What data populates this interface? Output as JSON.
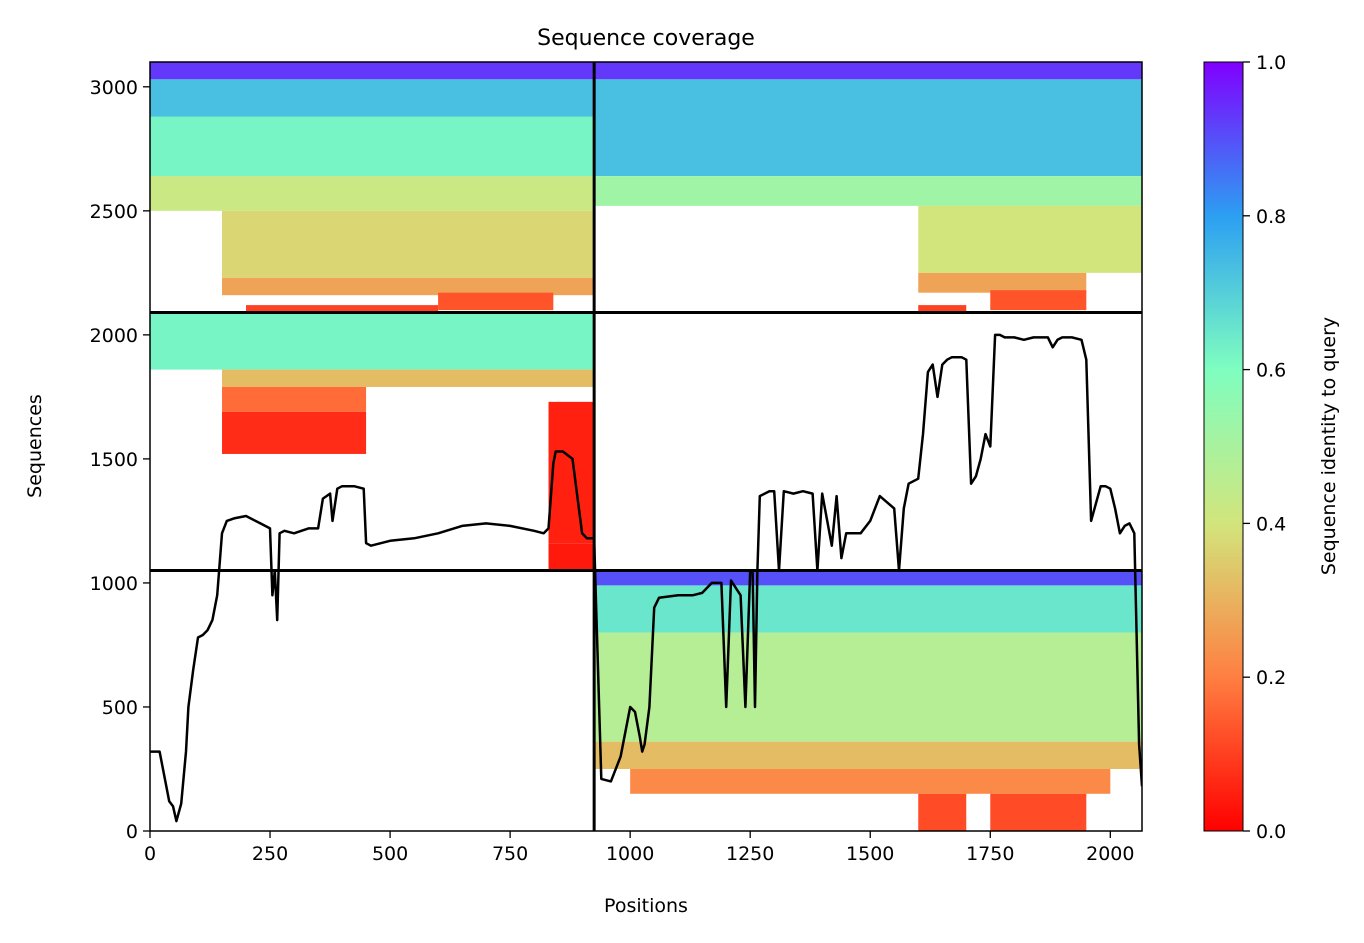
{
  "chart_data": {
    "type": "heatmap",
    "title": "Sequence coverage",
    "xlabel": "Positions",
    "ylabel": "Sequences",
    "xlim": [
      0,
      2066
    ],
    "ylim": [
      0,
      3100
    ],
    "xticks": [
      0,
      250,
      500,
      750,
      1000,
      1250,
      1500,
      1750,
      2000
    ],
    "yticks": [
      0,
      500,
      1000,
      1500,
      2000,
      2500,
      3000
    ],
    "grid": false,
    "colorbar": {
      "label": "Sequence identity to query",
      "range": [
        0,
        1
      ],
      "ticks": [
        0.0,
        0.2,
        0.4,
        0.6,
        0.8,
        1.0
      ],
      "tick_labels": [
        "0.0",
        "0.2",
        "0.4",
        "0.6",
        "0.8",
        "1.0"
      ],
      "colormap": "rainbow_r",
      "colors": [
        "#ff0000",
        "#ff7f41",
        "#d2e57c",
        "#7ffec0",
        "#2c9ff2",
        "#8000ff"
      ]
    },
    "chain_boundaries": {
      "x": [
        925
      ],
      "y": [
        1050,
        2090
      ]
    },
    "blocks": [
      {
        "x_range": [
          0,
          925
        ],
        "y_range": [
          2090,
          3100
        ],
        "bands": [
          {
            "y": [
              3030,
              3100
            ],
            "x": [
              0,
              925
            ],
            "identity": 0.93
          },
          {
            "y": [
              2640,
              3030
            ],
            "x": [
              0,
              925
            ],
            "identity": 0.73
          },
          {
            "y": [
              2640,
              2880
            ],
            "x": [
              0,
              925
            ],
            "identity": 0.62
          },
          {
            "y": [
              2500,
              2640
            ],
            "x": [
              0,
              925
            ],
            "identity": 0.42
          },
          {
            "y": [
              2230,
              2500
            ],
            "x": [
              150,
              925
            ],
            "identity": 0.37
          },
          {
            "y": [
              2160,
              2230
            ],
            "x": [
              150,
              925
            ],
            "identity": 0.27
          },
          {
            "y": [
              2100,
              2170
            ],
            "x": [
              600,
              840
            ],
            "identity": 0.13
          },
          {
            "y": [
              2090,
              2120
            ],
            "x": [
              200,
              600
            ],
            "identity": 0.1
          }
        ]
      },
      {
        "x_range": [
          925,
          2066
        ],
        "y_range": [
          2090,
          3100
        ],
        "bands": [
          {
            "y": [
              3030,
              3100
            ],
            "x": [
              925,
              2066
            ],
            "identity": 0.93
          },
          {
            "y": [
              2640,
              3030
            ],
            "x": [
              925,
              2066
            ],
            "identity": 0.73
          },
          {
            "y": [
              2520,
              2640
            ],
            "x": [
              925,
              2066
            ],
            "identity": 0.52
          },
          {
            "y": [
              2250,
              2520
            ],
            "x": [
              1600,
              2066
            ],
            "identity": 0.4
          },
          {
            "y": [
              2170,
              2250
            ],
            "x": [
              1600,
              1950
            ],
            "identity": 0.27
          },
          {
            "y": [
              2100,
              2180
            ],
            "x": [
              1750,
              1950
            ],
            "identity": 0.13
          },
          {
            "y": [
              2090,
              2120
            ],
            "x": [
              1600,
              1700
            ],
            "identity": 0.1
          }
        ]
      },
      {
        "x_range": [
          0,
          925
        ],
        "y_range": [
          1050,
          2090
        ],
        "bands": [
          {
            "y": [
              1860,
              2090
            ],
            "x": [
              0,
              925
            ],
            "identity": 0.62
          },
          {
            "y": [
              1790,
              1860
            ],
            "x": [
              150,
              925
            ],
            "identity": 0.32
          },
          {
            "y": [
              1690,
              1790
            ],
            "x": [
              150,
              450
            ],
            "identity": 0.17
          },
          {
            "y": [
              1520,
              1690
            ],
            "x": [
              150,
              450
            ],
            "identity": 0.07
          },
          {
            "y": [
              1160,
              1730
            ],
            "x": [
              830,
              925
            ],
            "identity": 0.05
          },
          {
            "y": [
              1050,
              1160
            ],
            "x": [
              830,
              925
            ],
            "identity": 0.04
          }
        ]
      },
      {
        "x_range": [
          925,
          2066
        ],
        "y_range": [
          0,
          1050
        ],
        "bands": [
          {
            "y": [
              990,
              1050
            ],
            "x": [
              925,
              2066
            ],
            "identity": 0.9
          },
          {
            "y": [
              800,
              990
            ],
            "x": [
              925,
              2066
            ],
            "identity": 0.65
          },
          {
            "y": [
              360,
              800
            ],
            "x": [
              925,
              2066
            ],
            "identity": 0.47
          },
          {
            "y": [
              250,
              360
            ],
            "x": [
              925,
              2066
            ],
            "identity": 0.32
          },
          {
            "y": [
              150,
              250
            ],
            "x": [
              1000,
              2000
            ],
            "identity": 0.22
          },
          {
            "y": [
              0,
              150
            ],
            "x": [
              1600,
              1700
            ],
            "identity": 0.12
          },
          {
            "y": [
              0,
              150
            ],
            "x": [
              1750,
              1950
            ],
            "identity": 0.12
          }
        ]
      }
    ],
    "coverage_line": {
      "x": [
        0,
        20,
        40,
        48,
        55,
        65,
        75,
        80,
        90,
        100,
        110,
        120,
        130,
        140,
        150,
        160,
        175,
        200,
        230,
        250,
        255,
        260,
        265,
        270,
        280,
        300,
        330,
        350,
        360,
        375,
        380,
        390,
        400,
        425,
        445,
        450,
        460,
        500,
        550,
        600,
        650,
        700,
        750,
        800,
        820,
        830,
        840,
        845,
        860,
        880,
        900,
        910,
        925,
        940,
        960,
        980,
        1000,
        1010,
        1020,
        1025,
        1030,
        1040,
        1050,
        1060,
        1100,
        1130,
        1150,
        1170,
        1190,
        1200,
        1210,
        1230,
        1240,
        1250,
        1255,
        1260,
        1265,
        1270,
        1290,
        1300,
        1310,
        1320,
        1340,
        1360,
        1380,
        1390,
        1400,
        1420,
        1430,
        1440,
        1450,
        1480,
        1500,
        1520,
        1550,
        1560,
        1570,
        1580,
        1600,
        1610,
        1620,
        1630,
        1640,
        1650,
        1660,
        1670,
        1690,
        1700,
        1710,
        1720,
        1730,
        1740,
        1750,
        1760,
        1770,
        1780,
        1800,
        1820,
        1840,
        1860,
        1870,
        1880,
        1890,
        1900,
        1920,
        1940,
        1950,
        1960,
        1970,
        1980,
        1990,
        2000,
        2010,
        2020,
        2030,
        2040,
        2050,
        2060,
        2066
      ],
      "y": [
        320,
        320,
        120,
        100,
        40,
        110,
        320,
        500,
        650,
        780,
        790,
        810,
        850,
        950,
        1200,
        1250,
        1260,
        1270,
        1240,
        1220,
        950,
        1050,
        850,
        1200,
        1210,
        1200,
        1220,
        1220,
        1340,
        1360,
        1250,
        1380,
        1390,
        1390,
        1380,
        1160,
        1150,
        1170,
        1180,
        1200,
        1230,
        1240,
        1230,
        1210,
        1200,
        1220,
        1480,
        1530,
        1530,
        1500,
        1200,
        1180,
        1180,
        210,
        200,
        300,
        500,
        480,
        380,
        320,
        350,
        500,
        900,
        940,
        950,
        950,
        960,
        1000,
        1000,
        500,
        1010,
        950,
        500,
        1050,
        1050,
        500,
        1050,
        1350,
        1370,
        1370,
        1050,
        1370,
        1360,
        1370,
        1360,
        1050,
        1360,
        1150,
        1350,
        1100,
        1200,
        1200,
        1250,
        1350,
        1300,
        1050,
        1300,
        1400,
        1420,
        1600,
        1850,
        1880,
        1750,
        1880,
        1900,
        1910,
        1910,
        1900,
        1400,
        1430,
        1500,
        1600,
        1550,
        2000,
        2000,
        1990,
        1990,
        1980,
        1990,
        1990,
        1990,
        1950,
        1980,
        1990,
        1990,
        1980,
        1900,
        1250,
        1320,
        1390,
        1390,
        1380,
        1300,
        1200,
        1230,
        1240,
        1200,
        350,
        180
      ]
    }
  }
}
